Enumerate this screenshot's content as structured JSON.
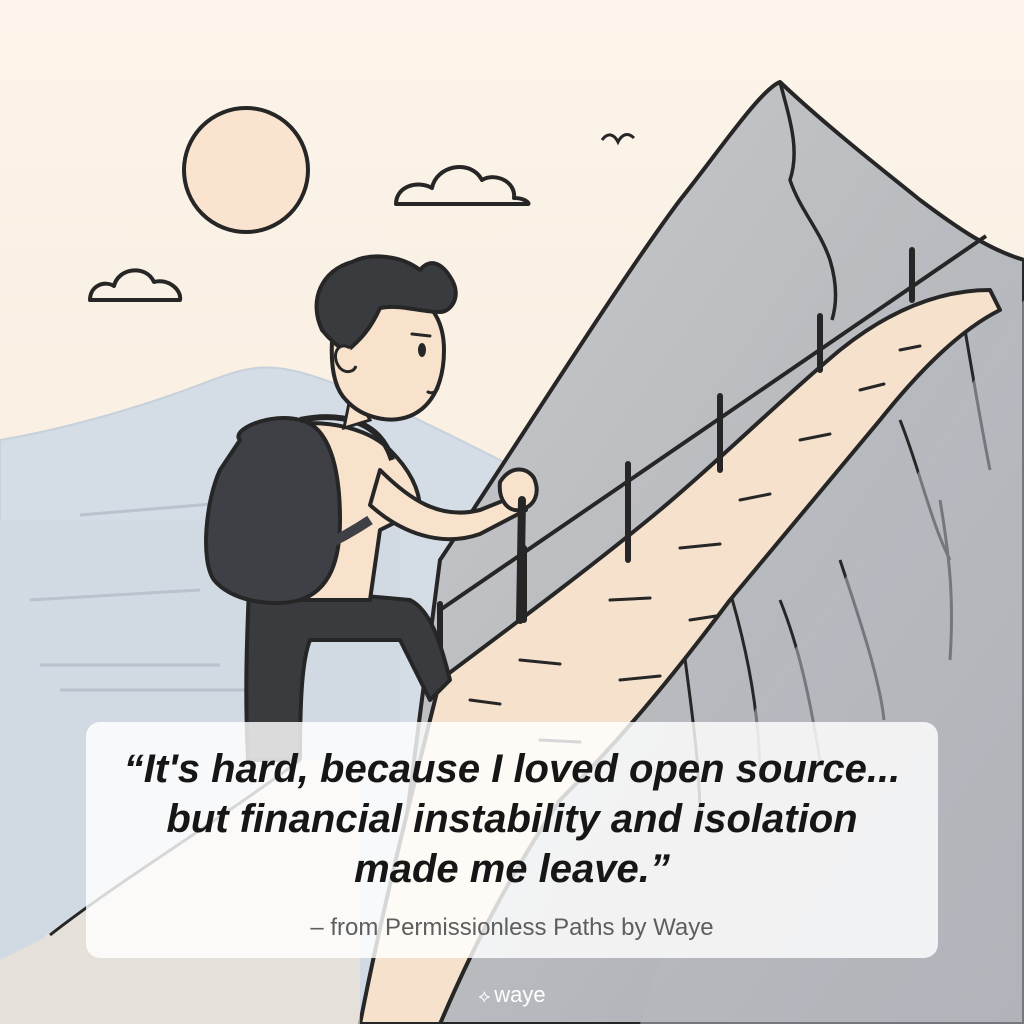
{
  "quote": {
    "lines": [
      "“It's hard, because I loved open source...",
      "but financial instability and isolation",
      "made me leave.”"
    ],
    "attribution": "– from Permissionless Paths by Waye"
  },
  "brand": {
    "icon": "diamond-logo-icon",
    "name": "waye"
  },
  "colors": {
    "background": "#fbf3e9",
    "mountain": "#c6c7c9",
    "distant_hills": "#d3dce4",
    "sun": "#fbe5d2",
    "outline": "#262626"
  }
}
